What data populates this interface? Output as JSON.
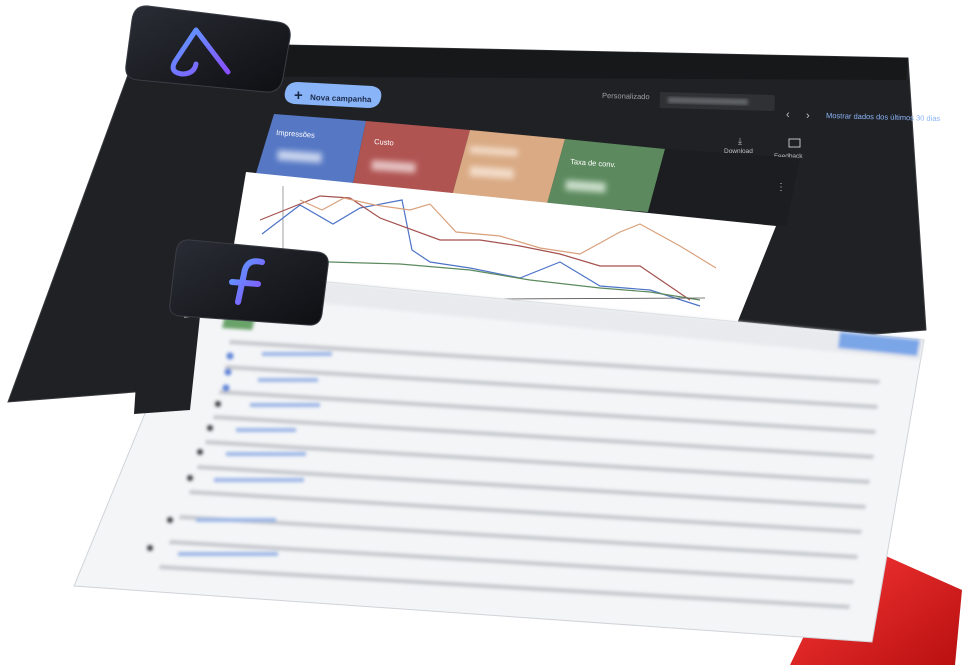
{
  "toolbar": {
    "new_campaign": "Nova campanha",
    "period_label": "Personalizado",
    "range_link": "Mostrar dados dos últimos 30 dias"
  },
  "metric_tiles": [
    "Impressões",
    "Custo",
    "Taxa de conv."
  ],
  "actions": [
    "Download",
    "Feedback"
  ]
}
